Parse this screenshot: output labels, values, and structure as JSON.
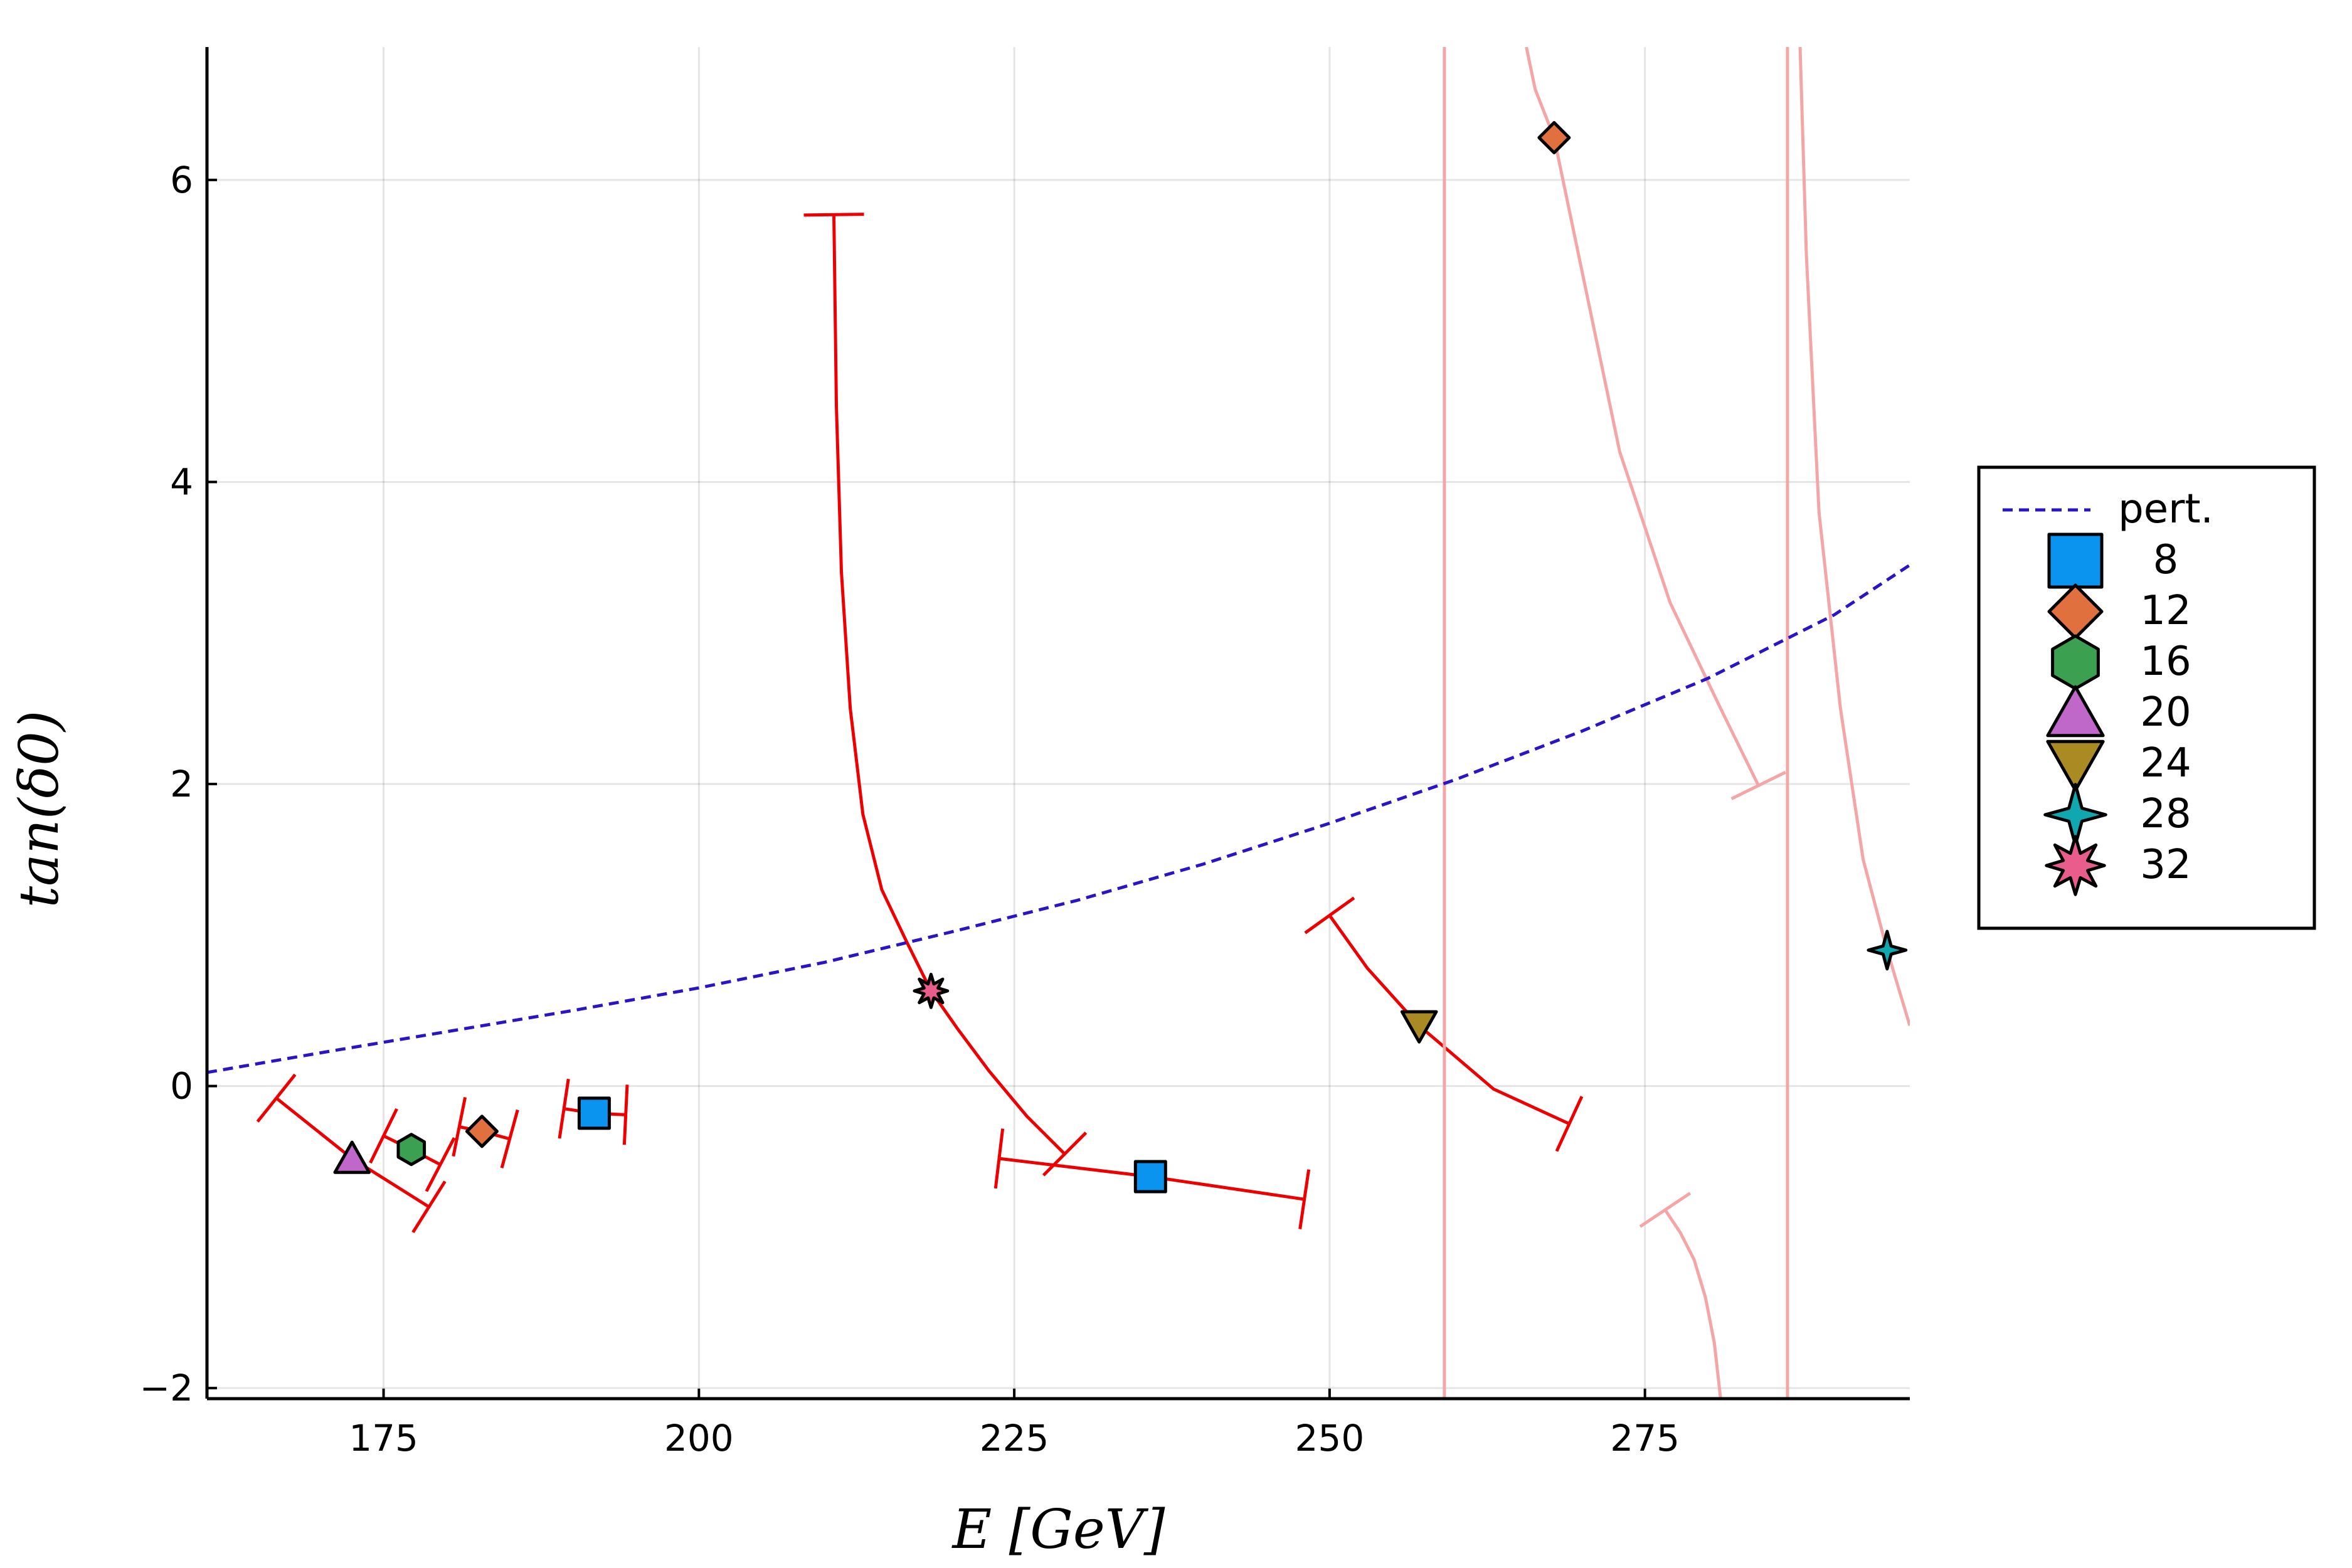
{
  "chart_data": {
    "type": "scatter",
    "title": "",
    "xlabel": "E [GeV]",
    "ylabel": "tan(δ0)",
    "xlim": [
      161,
      296
    ],
    "ylim": [
      -2.07,
      6.88
    ],
    "x_ticks": [
      175,
      200,
      225,
      250,
      275
    ],
    "y_ticks": [
      -2,
      0,
      2,
      4,
      6
    ],
    "x_tick_labels": [
      "175",
      "200",
      "225",
      "250",
      "275"
    ],
    "y_tick_labels": [
      "−2",
      "0",
      "2",
      "4",
      "6"
    ],
    "grid": true,
    "legend_position": "right",
    "perturbative_curve": {
      "name": "pert.",
      "color": "#2a14c8",
      "style": "dashed",
      "x": [
        161,
        170,
        180,
        190,
        200,
        210,
        220,
        230,
        240,
        250,
        260,
        270,
        280,
        290,
        296
      ],
      "y": [
        0.09,
        0.22,
        0.36,
        0.5,
        0.65,
        0.82,
        1.02,
        1.23,
        1.47,
        1.74,
        2.03,
        2.35,
        2.7,
        3.12,
        3.45
      ]
    },
    "series": [
      {
        "name": "8",
        "marker": "square",
        "color": "#0a94f0",
        "points": [
          {
            "x": 191.7,
            "y": -0.18
          },
          {
            "x": 235.8,
            "y": -0.6
          }
        ]
      },
      {
        "name": "12",
        "marker": "diamond",
        "color": "#e0703e",
        "points": [
          {
            "x": 182.8,
            "y": -0.3
          },
          {
            "x": 267.8,
            "y": 6.28
          }
        ]
      },
      {
        "name": "16",
        "marker": "hexagon",
        "color": "#3ba04f",
        "points": [
          {
            "x": 177.2,
            "y": -0.42
          }
        ]
      },
      {
        "name": "20",
        "marker": "triangle-up",
        "color": "#c068c9",
        "points": [
          {
            "x": 172.5,
            "y": -0.48
          }
        ]
      },
      {
        "name": "24",
        "marker": "triangle-down",
        "color": "#aa8a22",
        "points": [
          {
            "x": 257.1,
            "y": 0.4
          }
        ]
      },
      {
        "name": "28",
        "marker": "star4",
        "color": "#10a8b0",
        "points": [
          {
            "x": 294.2,
            "y": 0.9
          }
        ]
      },
      {
        "name": "32",
        "marker": "star8",
        "color": "#e85d8c",
        "points": [
          {
            "x": 218.4,
            "y": 0.63
          }
        ]
      }
    ],
    "error_curves": [
      {
        "color": "#ee0000",
        "alpha": 1,
        "x": [
          166.5,
          172.5,
          178.6
        ],
        "y": [
          -0.08,
          -0.48,
          -0.8
        ],
        "cap_start": true,
        "cap_end": true
      },
      {
        "color": "#ee0000",
        "alpha": 1,
        "x": [
          175.0,
          177.2,
          179.5
        ],
        "y": [
          -0.33,
          -0.42,
          -0.52
        ],
        "cap_start": true,
        "cap_end": true
      },
      {
        "color": "#ee0000",
        "alpha": 1,
        "x": [
          181.0,
          182.8,
          185.0
        ],
        "y": [
          -0.27,
          -0.3,
          -0.35
        ],
        "cap_start": true,
        "cap_end": true
      },
      {
        "color": "#ee0000",
        "alpha": 1,
        "x": [
          189.3,
          191.7,
          194.2
        ],
        "y": [
          -0.15,
          -0.18,
          -0.19
        ],
        "cap_start": true,
        "cap_end": true
      },
      {
        "color": "#ee0000",
        "alpha": 1,
        "x": [
          210.7,
          210.9,
          211.3,
          212.0,
          213.0,
          214.5,
          216.5,
          218.4,
          220.5,
          223.0,
          226.0,
          229.0
        ],
        "y": [
          5.77,
          4.5,
          3.4,
          2.5,
          1.8,
          1.3,
          0.95,
          0.63,
          0.38,
          0.1,
          -0.2,
          -0.45
        ],
        "cap_start": true,
        "cap_end": true
      },
      {
        "color": "#ee0000",
        "alpha": 1,
        "x": [
          223.8,
          235.8,
          248.0
        ],
        "y": [
          -0.48,
          -0.6,
          -0.75
        ],
        "cap_start": true,
        "cap_end": true
      },
      {
        "color": "#ee0000",
        "alpha": 1,
        "x": [
          250.0,
          253.0,
          257.1,
          263.0,
          269.0
        ],
        "y": [
          1.13,
          0.78,
          0.4,
          -0.02,
          -0.25
        ],
        "cap_start": true,
        "cap_end": true
      },
      {
        "color": "#f4a6a6",
        "alpha": 1,
        "x": [
          259.1,
          259.1
        ],
        "y": [
          -2.07,
          6.88
        ],
        "cap_start": false,
        "cap_end": false
      },
      {
        "color": "#f4a6a6",
        "alpha": 1,
        "x": [
          286.3,
          286.3
        ],
        "y": [
          -2.07,
          6.88
        ],
        "cap_start": false,
        "cap_end": false
      },
      {
        "color": "#f4a6a6",
        "alpha": 1,
        "x": [
          265.6,
          266.3,
          267.8,
          270.0,
          273.0,
          277.0,
          281.0,
          284.0
        ],
        "y": [
          6.88,
          6.6,
          6.28,
          5.4,
          4.2,
          3.2,
          2.5,
          1.99
        ],
        "cap_start": false,
        "cap_end": true
      },
      {
        "color": "#f4a6a6",
        "alpha": 1,
        "x": [
          287.3,
          287.8,
          288.8,
          290.5,
          292.3,
          294.2,
          296.0
        ],
        "y": [
          6.88,
          5.5,
          3.8,
          2.5,
          1.5,
          0.9,
          0.4
        ],
        "cap_start": false,
        "cap_end": false
      },
      {
        "color": "#f4a6a6",
        "alpha": 1,
        "x": [
          281.0,
          280.5,
          279.8,
          278.9,
          277.8,
          276.6
        ],
        "y": [
          -2.07,
          -1.7,
          -1.4,
          -1.15,
          -0.97,
          -0.82
        ],
        "cap_start": false,
        "cap_end": true
      }
    ]
  }
}
